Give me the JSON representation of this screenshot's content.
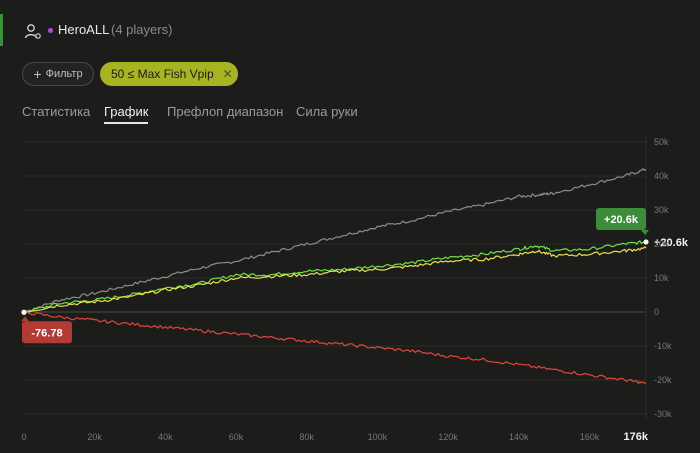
{
  "header": {
    "user_icon": "user-icon",
    "player_name": "HeroALL",
    "player_count": "(4 players)",
    "dot_color": "#b44ad6"
  },
  "filters": {
    "add_label": "Фильтр",
    "chip_label": "50 ≤ Max Fish Vpip",
    "chip_color": "#a7b322"
  },
  "tabs": [
    {
      "label": "Статистика",
      "active": false
    },
    {
      "label": "График",
      "active": true
    },
    {
      "label": "Префлоп диапазон",
      "active": false
    },
    {
      "label": "Сила руки",
      "active": false
    }
  ],
  "chart_data": {
    "type": "line",
    "xlim": [
      0,
      176
    ],
    "ylim": [
      -30,
      50
    ],
    "x_ticks": [
      "0",
      "20k",
      "40k",
      "60k",
      "80k",
      "100k",
      "120k",
      "140k",
      "160k"
    ],
    "x_max_label": "176k",
    "y_ticks": [
      "50k",
      "40k",
      "30k",
      "20k",
      "10k",
      "0",
      "-10k",
      "-20k",
      "-30k"
    ],
    "y_tick_values": [
      50,
      40,
      30,
      20,
      10,
      0,
      -10,
      -20,
      -30
    ],
    "grid": true,
    "series": [
      {
        "color": "#8c8c8c",
        "x": [
          0,
          10,
          20,
          30,
          40,
          50,
          60,
          70,
          80,
          90,
          100,
          110,
          120,
          130,
          140,
          146,
          150,
          160,
          170,
          176
        ],
        "y": [
          0,
          3.5,
          5.5,
          8,
          10.5,
          13,
          15,
          17.5,
          20,
          22.5,
          25,
          27,
          29.5,
          31.5,
          34,
          34.5,
          35,
          37.5,
          40,
          42
        ]
      },
      {
        "color": "#6fe04a",
        "x": [
          0,
          10,
          20,
          30,
          40,
          50,
          60,
          70,
          80,
          90,
          100,
          110,
          120,
          130,
          140,
          145,
          150,
          160,
          170,
          176
        ],
        "y": [
          0,
          2.5,
          3.5,
          5,
          7,
          8.5,
          11,
          11,
          12,
          12.5,
          13.5,
          14.5,
          16,
          17,
          18.5,
          19.5,
          18,
          18.5,
          20,
          20.6
        ]
      },
      {
        "color": "#e8e050",
        "x": [
          0,
          10,
          20,
          30,
          40,
          50,
          60,
          70,
          80,
          90,
          100,
          110,
          120,
          130,
          140,
          145,
          150,
          160,
          170,
          176
        ],
        "y": [
          0,
          2,
          3,
          4.5,
          6.5,
          8,
          10,
          10.5,
          11,
          12,
          12.5,
          13.5,
          15,
          15.5,
          17,
          18,
          16.5,
          17,
          18,
          18.8
        ]
      },
      {
        "color": "#e0463c",
        "x": [
          0,
          10,
          20,
          30,
          40,
          50,
          60,
          70,
          80,
          90,
          100,
          110,
          120,
          130,
          140,
          150,
          160,
          170,
          176
        ],
        "y": [
          -0.08,
          -1.5,
          -2.5,
          -3.5,
          -4.5,
          -5.5,
          -6.5,
          -7.5,
          -8.5,
          -9.5,
          -10.5,
          -11.5,
          -13,
          -14,
          -15.5,
          -17,
          -18.5,
          -20,
          -21
        ]
      }
    ],
    "end_label": "+20.6k",
    "end_label_color": "#3c8c3a",
    "end_value_text": "+20.6k",
    "start_label": "-76.78",
    "start_label_color": "#b23b35"
  }
}
